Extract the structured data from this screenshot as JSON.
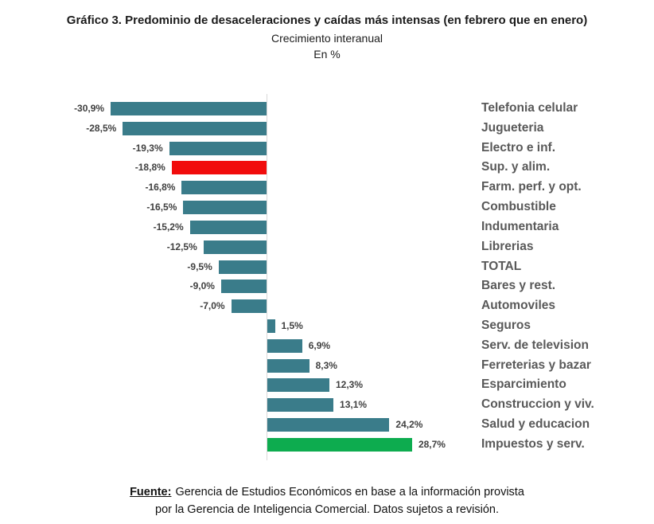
{
  "header": {
    "title": "Gráfico 3. Predominio de desaceleraciones y caídas más intensas (en febrero que en enero)",
    "subtitle": "Crecimiento interanual",
    "unit_label": "En %"
  },
  "footer": {
    "source_label": "Fuente:",
    "source_text": "Gerencia de Estudios Económicos en base a la información provista",
    "line2": "por la Gerencia de Inteligencia Comercial. Datos sujetos a revisión."
  },
  "colors": {
    "bar_teal": "#3A7C8A",
    "bar_red": "#F10C0C",
    "bar_green": "#0DAC4F",
    "axis_line": "#D9D9D9",
    "value_label": "#404040",
    "category_label": "#595959"
  },
  "chart_data": {
    "type": "bar",
    "orientation": "horizontal",
    "title": "Gráfico 3. Predominio de desaceleraciones y caídas más intensas (en febrero que en enero)",
    "subtitle": "Crecimiento interanual",
    "unit": "En %",
    "xlim": [
      -35,
      33
    ],
    "grid": false,
    "legend": false,
    "categories": [
      "Telefonia celular",
      "Jugueteria",
      "Electro e inf.",
      "Sup. y alim.",
      "Farm. perf. y opt.",
      "Combustible",
      "Indumentaria",
      "Librerias",
      "TOTAL",
      "Bares y rest.",
      "Automoviles",
      "Seguros",
      "Serv. de television",
      "Ferreterias y bazar",
      "Esparcimiento",
      "Construccion y viv.",
      "Salud y educacion",
      "Impuestos y serv."
    ],
    "values": [
      -30.9,
      -28.5,
      -19.3,
      -18.8,
      -16.8,
      -16.5,
      -15.2,
      -12.5,
      -9.5,
      -9.0,
      -7.0,
      1.5,
      6.9,
      8.3,
      12.3,
      13.1,
      24.2,
      28.7
    ],
    "value_labels": [
      "-30,9%",
      "-28,5%",
      "-19,3%",
      "-18,8%",
      "-16,8%",
      "-16,5%",
      "-15,2%",
      "-12,5%",
      "-9,5%",
      "-9,0%",
      "-7,0%",
      "1,5%",
      "6,9%",
      "8,3%",
      "12,3%",
      "13,1%",
      "24,2%",
      "28,7%"
    ],
    "bar_colors": [
      "bar_teal",
      "bar_teal",
      "bar_teal",
      "bar_red",
      "bar_teal",
      "bar_teal",
      "bar_teal",
      "bar_teal",
      "bar_teal",
      "bar_teal",
      "bar_teal",
      "bar_teal",
      "bar_teal",
      "bar_teal",
      "bar_teal",
      "bar_teal",
      "bar_teal",
      "bar_green"
    ],
    "highlights": {
      "red_bar_category": "Sup. y alim.",
      "green_bar_category": "Impuestos y serv."
    }
  }
}
